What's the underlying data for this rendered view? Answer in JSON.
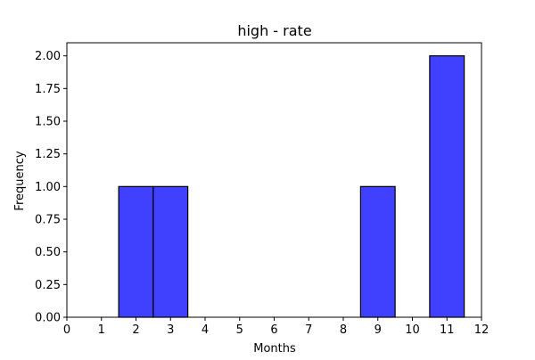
{
  "chart_data": {
    "type": "bar",
    "title": "high - rate",
    "xlabel": "Months",
    "ylabel": "Frequency",
    "bar_color": "#4040ff",
    "edge_color": "#000000",
    "xlim": [
      0,
      12
    ],
    "ylim": [
      0,
      2.1
    ],
    "x_ticks": [
      0,
      1,
      2,
      3,
      4,
      5,
      6,
      7,
      8,
      9,
      10,
      11,
      12
    ],
    "x_tick_labels": [
      "0",
      "1",
      "2",
      "3",
      "4",
      "5",
      "6",
      "7",
      "8",
      "9",
      "10",
      "11",
      "12"
    ],
    "y_ticks": [
      0,
      0.25,
      0.5,
      0.75,
      1.0,
      1.25,
      1.5,
      1.75,
      2.0
    ],
    "y_tick_labels": [
      "0.00",
      "0.25",
      "0.50",
      "0.75",
      "1.00",
      "1.25",
      "1.50",
      "1.75",
      "2.00"
    ],
    "bars": [
      {
        "x_start": 1.5,
        "x_end": 2.5,
        "value": 1
      },
      {
        "x_start": 2.5,
        "x_end": 3.5,
        "value": 1
      },
      {
        "x_start": 8.5,
        "x_end": 9.5,
        "value": 1
      },
      {
        "x_start": 10.5,
        "x_end": 11.5,
        "value": 2
      }
    ],
    "grid": false,
    "legend": "none"
  }
}
